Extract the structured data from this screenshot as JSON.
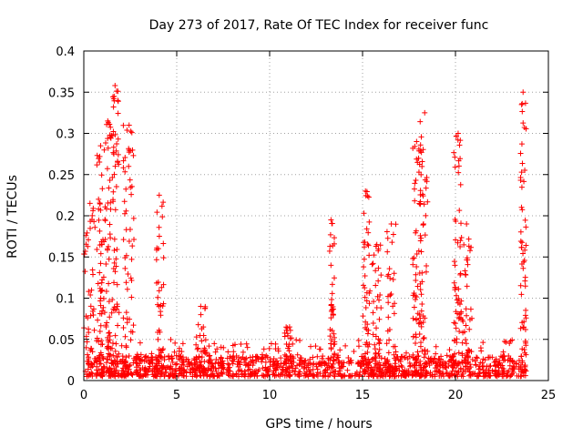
{
  "chart_data": {
    "type": "scatter",
    "title": "Day 273 of 2017, Rate Of TEC Index for receiver func",
    "xlabel": "GPS time / hours",
    "ylabel": "ROTI / TECUs",
    "xlim": [
      0,
      25
    ],
    "ylim": [
      0,
      0.4
    ],
    "x_ticks": [
      "0",
      "5",
      "10",
      "15",
      "20",
      "25"
    ],
    "y_ticks": [
      "0",
      "0.05",
      "0.1",
      "0.15",
      "0.2",
      "0.25",
      "0.3",
      "0.35",
      "0.4"
    ],
    "grid": true,
    "marker": "+",
    "colors": {
      "series": "#ff0000",
      "grid": "#a0a0a0"
    },
    "baseline": {
      "x_start": 0,
      "x_end": 23.8,
      "typical_max": 0.03,
      "typical_min": 0.005
    },
    "bursts": [
      {
        "x_start": 0.0,
        "x_end": 0.6,
        "peak": 0.215
      },
      {
        "x_start": 0.7,
        "x_end": 1.1,
        "peak": 0.285
      },
      {
        "x_start": 1.1,
        "x_end": 1.5,
        "peak": 0.315
      },
      {
        "x_start": 1.5,
        "x_end": 1.9,
        "peak": 0.358
      },
      {
        "x_start": 2.1,
        "x_end": 2.7,
        "peak": 0.31
      },
      {
        "x_start": 3.9,
        "x_end": 4.3,
        "peak": 0.225
      },
      {
        "x_start": 6.0,
        "x_end": 6.6,
        "peak": 0.09
      },
      {
        "x_start": 10.8,
        "x_end": 11.3,
        "peak": 0.065
      },
      {
        "x_start": 13.2,
        "x_end": 13.5,
        "peak": 0.195
      },
      {
        "x_start": 15.0,
        "x_end": 15.4,
        "peak": 0.23
      },
      {
        "x_start": 15.5,
        "x_end": 16.0,
        "peak": 0.165
      },
      {
        "x_start": 16.3,
        "x_end": 16.8,
        "peak": 0.19
      },
      {
        "x_start": 17.7,
        "x_end": 18.1,
        "peak": 0.29
      },
      {
        "x_start": 18.1,
        "x_end": 18.5,
        "peak": 0.325
      },
      {
        "x_start": 19.9,
        "x_end": 20.3,
        "peak": 0.3
      },
      {
        "x_start": 20.3,
        "x_end": 20.9,
        "peak": 0.19
      },
      {
        "x_start": 23.5,
        "x_end": 23.8,
        "peak": 0.35
      }
    ]
  }
}
